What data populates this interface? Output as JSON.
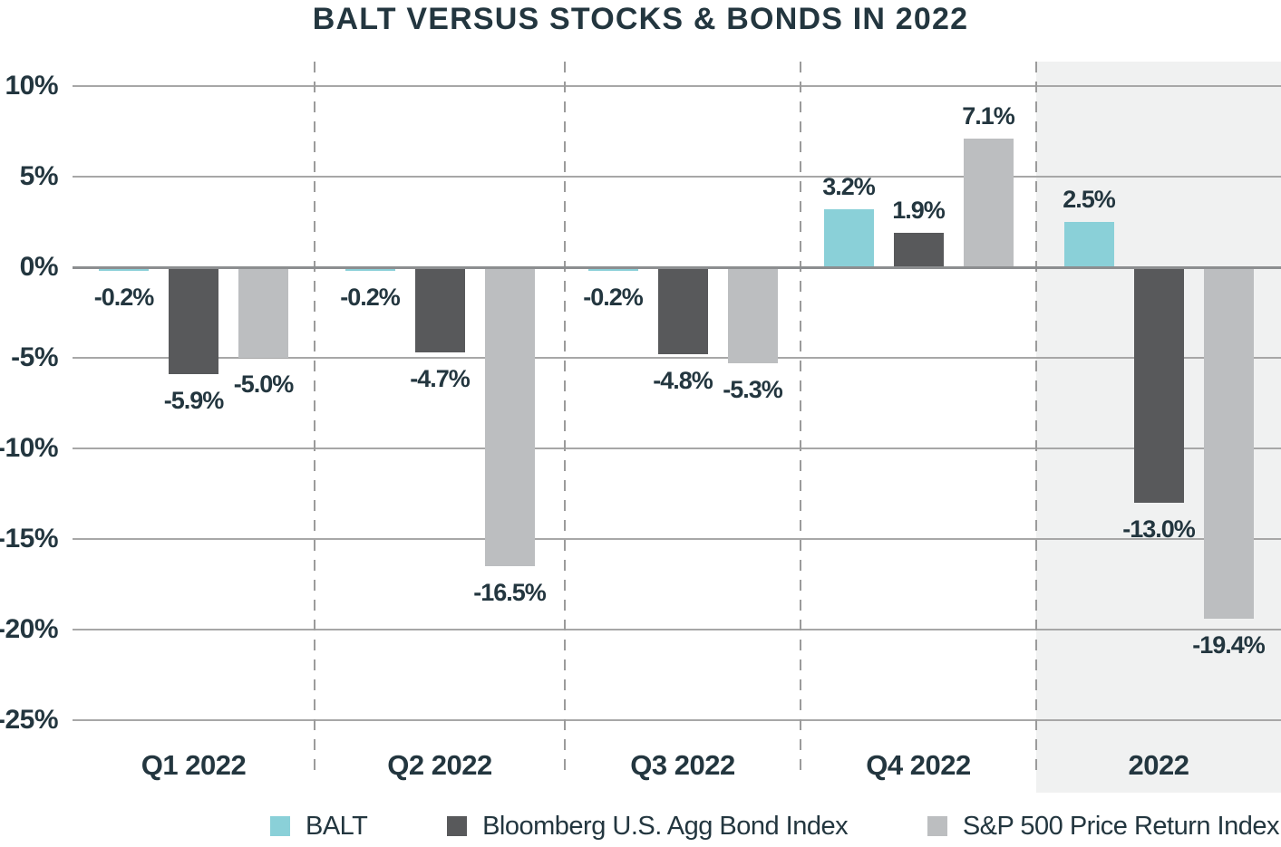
{
  "title": "BALT VERSUS STOCKS & BONDS IN 2022",
  "colors": {
    "text": "#23363f",
    "grid_line": "#a7a7a7",
    "zero_line": "#8c8e90",
    "highlight_panel": "#f0f1f1",
    "balt": "#8ad0d8",
    "agg_bond": "#58595b",
    "sp500": "#bcbec0"
  },
  "chart_data": {
    "type": "bar",
    "title": "BALT VERSUS STOCKS & BONDS IN 2022",
    "categories": [
      "Q1 2022",
      "Q2 2022",
      "Q3 2022",
      "Q4 2022",
      "2022"
    ],
    "series": [
      {
        "name": "BALT",
        "color": "#8ad0d8",
        "values": [
          -0.2,
          -0.2,
          -0.2,
          3.2,
          2.5
        ],
        "labels": [
          "-0.2%",
          "-0.2%",
          "-0.2%",
          "3.2%",
          "2.5%"
        ]
      },
      {
        "name": "Bloomberg U.S. Agg Bond Index",
        "color": "#58595b",
        "values": [
          -5.9,
          -4.7,
          -4.8,
          1.9,
          -13.0
        ],
        "labels": [
          "-5.9%",
          "-4.7%",
          "-4.8%",
          "1.9%",
          "-13.0%"
        ]
      },
      {
        "name": "S&P 500 Price Return Index",
        "color": "#bcbec0",
        "values": [
          -5.0,
          -16.5,
          -5.3,
          7.1,
          -19.4
        ],
        "labels": [
          "-5.0%",
          "-16.5%",
          "-5.3%",
          "7.1%",
          "-19.4%"
        ]
      }
    ],
    "xlabel": "",
    "ylabel": "",
    "ylim": [
      -25,
      10
    ],
    "y_ticks": [
      {
        "value": 10,
        "label": "10%"
      },
      {
        "value": 5,
        "label": "5%"
      },
      {
        "value": 0,
        "label": "0%"
      },
      {
        "value": -5,
        "label": "-5%"
      },
      {
        "value": -10,
        "label": "-10%"
      },
      {
        "value": -15,
        "label": "-15%"
      },
      {
        "value": -20,
        "label": "-20%"
      },
      {
        "value": -25,
        "label": "-25%"
      }
    ],
    "grid": "horizontal",
    "category_dividers": "dashed",
    "highlight_category": "2022",
    "legend_position": "bottom"
  }
}
